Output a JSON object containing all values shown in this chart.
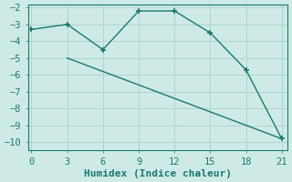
{
  "line1_x": [
    0,
    3,
    6,
    9,
    12,
    15,
    18,
    21
  ],
  "line1_y": [
    -3.3,
    -3.0,
    -4.5,
    -2.2,
    -2.2,
    -3.5,
    -5.7,
    -9.8
  ],
  "line2_x": [
    3,
    21
  ],
  "line2_y": [
    -5.0,
    -9.8
  ],
  "line_color": "#1a7a6e",
  "background_color": "#ceeae7",
  "grid_color": "#b0d4d0",
  "xlabel": "Humidex (Indice chaleur)",
  "xlim": [
    -0.3,
    21.5
  ],
  "ylim": [
    -10.5,
    -1.8
  ],
  "xticks": [
    0,
    3,
    6,
    9,
    12,
    15,
    18,
    21
  ],
  "yticks": [
    -10,
    -9,
    -8,
    -7,
    -6,
    -5,
    -4,
    -3,
    -2
  ],
  "font_size": 7.5,
  "xlabel_font_size": 8,
  "marker_size": 4,
  "linewidth": 1.0
}
